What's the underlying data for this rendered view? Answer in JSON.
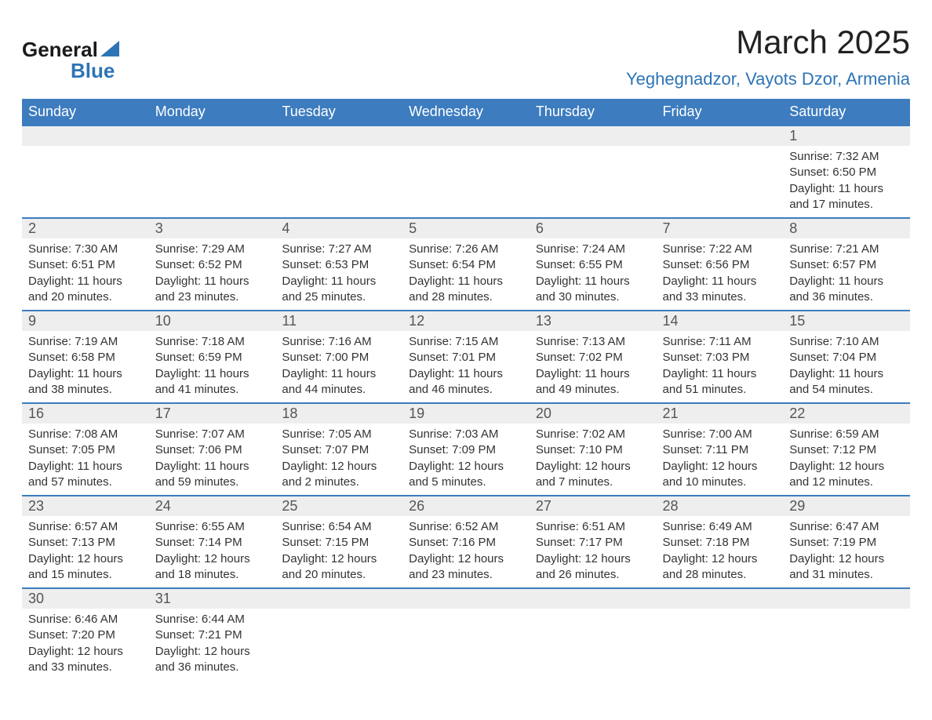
{
  "logo": {
    "word1": "General",
    "word2": "Blue"
  },
  "title": "March 2025",
  "location": "Yeghegnadzor, Vayots Dzor, Armenia",
  "colors": {
    "header_bg": "#3d7cbf",
    "header_text": "#ffffff",
    "accent": "#2e74b5",
    "daynum_bg": "#eeeeee",
    "text": "#333333",
    "background": "#ffffff",
    "row_border": "#3d7cbf"
  },
  "typography": {
    "title_fontsize": 42,
    "location_fontsize": 22,
    "header_fontsize": 18,
    "daynum_fontsize": 18,
    "cell_fontsize": 15,
    "font_family": "Arial"
  },
  "calendar": {
    "type": "table",
    "columns": [
      "Sunday",
      "Monday",
      "Tuesday",
      "Wednesday",
      "Thursday",
      "Friday",
      "Saturday"
    ],
    "weeks": [
      [
        null,
        null,
        null,
        null,
        null,
        null,
        {
          "day": "1",
          "sunrise": "Sunrise: 7:32 AM",
          "sunset": "Sunset: 6:50 PM",
          "daylight": "Daylight: 11 hours and 17 minutes."
        }
      ],
      [
        {
          "day": "2",
          "sunrise": "Sunrise: 7:30 AM",
          "sunset": "Sunset: 6:51 PM",
          "daylight": "Daylight: 11 hours and 20 minutes."
        },
        {
          "day": "3",
          "sunrise": "Sunrise: 7:29 AM",
          "sunset": "Sunset: 6:52 PM",
          "daylight": "Daylight: 11 hours and 23 minutes."
        },
        {
          "day": "4",
          "sunrise": "Sunrise: 7:27 AM",
          "sunset": "Sunset: 6:53 PM",
          "daylight": "Daylight: 11 hours and 25 minutes."
        },
        {
          "day": "5",
          "sunrise": "Sunrise: 7:26 AM",
          "sunset": "Sunset: 6:54 PM",
          "daylight": "Daylight: 11 hours and 28 minutes."
        },
        {
          "day": "6",
          "sunrise": "Sunrise: 7:24 AM",
          "sunset": "Sunset: 6:55 PM",
          "daylight": "Daylight: 11 hours and 30 minutes."
        },
        {
          "day": "7",
          "sunrise": "Sunrise: 7:22 AM",
          "sunset": "Sunset: 6:56 PM",
          "daylight": "Daylight: 11 hours and 33 minutes."
        },
        {
          "day": "8",
          "sunrise": "Sunrise: 7:21 AM",
          "sunset": "Sunset: 6:57 PM",
          "daylight": "Daylight: 11 hours and 36 minutes."
        }
      ],
      [
        {
          "day": "9",
          "sunrise": "Sunrise: 7:19 AM",
          "sunset": "Sunset: 6:58 PM",
          "daylight": "Daylight: 11 hours and 38 minutes."
        },
        {
          "day": "10",
          "sunrise": "Sunrise: 7:18 AM",
          "sunset": "Sunset: 6:59 PM",
          "daylight": "Daylight: 11 hours and 41 minutes."
        },
        {
          "day": "11",
          "sunrise": "Sunrise: 7:16 AM",
          "sunset": "Sunset: 7:00 PM",
          "daylight": "Daylight: 11 hours and 44 minutes."
        },
        {
          "day": "12",
          "sunrise": "Sunrise: 7:15 AM",
          "sunset": "Sunset: 7:01 PM",
          "daylight": "Daylight: 11 hours and 46 minutes."
        },
        {
          "day": "13",
          "sunrise": "Sunrise: 7:13 AM",
          "sunset": "Sunset: 7:02 PM",
          "daylight": "Daylight: 11 hours and 49 minutes."
        },
        {
          "day": "14",
          "sunrise": "Sunrise: 7:11 AM",
          "sunset": "Sunset: 7:03 PM",
          "daylight": "Daylight: 11 hours and 51 minutes."
        },
        {
          "day": "15",
          "sunrise": "Sunrise: 7:10 AM",
          "sunset": "Sunset: 7:04 PM",
          "daylight": "Daylight: 11 hours and 54 minutes."
        }
      ],
      [
        {
          "day": "16",
          "sunrise": "Sunrise: 7:08 AM",
          "sunset": "Sunset: 7:05 PM",
          "daylight": "Daylight: 11 hours and 57 minutes."
        },
        {
          "day": "17",
          "sunrise": "Sunrise: 7:07 AM",
          "sunset": "Sunset: 7:06 PM",
          "daylight": "Daylight: 11 hours and 59 minutes."
        },
        {
          "day": "18",
          "sunrise": "Sunrise: 7:05 AM",
          "sunset": "Sunset: 7:07 PM",
          "daylight": "Daylight: 12 hours and 2 minutes."
        },
        {
          "day": "19",
          "sunrise": "Sunrise: 7:03 AM",
          "sunset": "Sunset: 7:09 PM",
          "daylight": "Daylight: 12 hours and 5 minutes."
        },
        {
          "day": "20",
          "sunrise": "Sunrise: 7:02 AM",
          "sunset": "Sunset: 7:10 PM",
          "daylight": "Daylight: 12 hours and 7 minutes."
        },
        {
          "day": "21",
          "sunrise": "Sunrise: 7:00 AM",
          "sunset": "Sunset: 7:11 PM",
          "daylight": "Daylight: 12 hours and 10 minutes."
        },
        {
          "day": "22",
          "sunrise": "Sunrise: 6:59 AM",
          "sunset": "Sunset: 7:12 PM",
          "daylight": "Daylight: 12 hours and 12 minutes."
        }
      ],
      [
        {
          "day": "23",
          "sunrise": "Sunrise: 6:57 AM",
          "sunset": "Sunset: 7:13 PM",
          "daylight": "Daylight: 12 hours and 15 minutes."
        },
        {
          "day": "24",
          "sunrise": "Sunrise: 6:55 AM",
          "sunset": "Sunset: 7:14 PM",
          "daylight": "Daylight: 12 hours and 18 minutes."
        },
        {
          "day": "25",
          "sunrise": "Sunrise: 6:54 AM",
          "sunset": "Sunset: 7:15 PM",
          "daylight": "Daylight: 12 hours and 20 minutes."
        },
        {
          "day": "26",
          "sunrise": "Sunrise: 6:52 AM",
          "sunset": "Sunset: 7:16 PM",
          "daylight": "Daylight: 12 hours and 23 minutes."
        },
        {
          "day": "27",
          "sunrise": "Sunrise: 6:51 AM",
          "sunset": "Sunset: 7:17 PM",
          "daylight": "Daylight: 12 hours and 26 minutes."
        },
        {
          "day": "28",
          "sunrise": "Sunrise: 6:49 AM",
          "sunset": "Sunset: 7:18 PM",
          "daylight": "Daylight: 12 hours and 28 minutes."
        },
        {
          "day": "29",
          "sunrise": "Sunrise: 6:47 AM",
          "sunset": "Sunset: 7:19 PM",
          "daylight": "Daylight: 12 hours and 31 minutes."
        }
      ],
      [
        {
          "day": "30",
          "sunrise": "Sunrise: 6:46 AM",
          "sunset": "Sunset: 7:20 PM",
          "daylight": "Daylight: 12 hours and 33 minutes."
        },
        {
          "day": "31",
          "sunrise": "Sunrise: 6:44 AM",
          "sunset": "Sunset: 7:21 PM",
          "daylight": "Daylight: 12 hours and 36 minutes."
        },
        null,
        null,
        null,
        null,
        null
      ]
    ]
  }
}
